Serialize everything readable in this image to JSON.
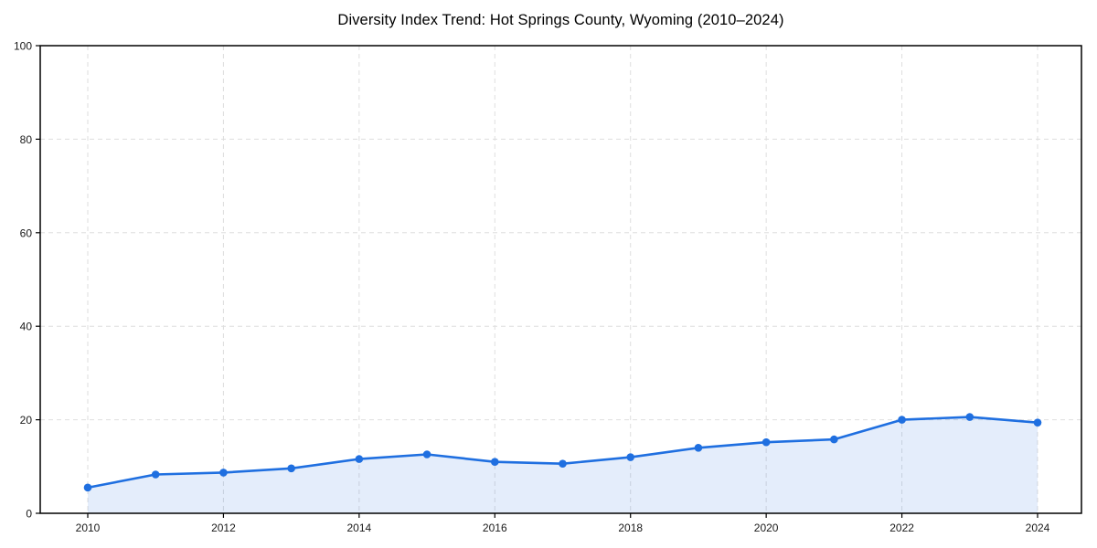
{
  "title": "Diversity Index Trend: Hot Springs County, Wyoming (2010–2024)",
  "chart_data": {
    "type": "area",
    "series_name": "Diversity Index",
    "x": [
      2010,
      2011,
      2012,
      2013,
      2014,
      2015,
      2016,
      2017,
      2018,
      2019,
      2020,
      2021,
      2022,
      2023,
      2024
    ],
    "values": [
      5.5,
      8.3,
      8.7,
      9.6,
      11.6,
      12.6,
      11.0,
      10.6,
      12.0,
      14.0,
      15.2,
      15.8,
      20.0,
      20.6,
      19.4
    ],
    "title": "Diversity Index Trend: Hot Springs County, Wyoming (2010–2024)",
    "xlabel": "",
    "ylabel": "",
    "ylim": [
      0,
      100
    ],
    "yticks": [
      0,
      20,
      40,
      60,
      80,
      100
    ],
    "xticks": [
      2010,
      2012,
      2014,
      2016,
      2018,
      2020,
      2022,
      2024
    ],
    "grid": true,
    "grid_style": "dashed",
    "legend": "none",
    "marker": "circle",
    "colors": {
      "line": "#1f6fe0",
      "fill_opacity": 0.12,
      "gridline": "#dedede",
      "axis_border": "#000000",
      "tick_label": "#1a1a1a",
      "background": "#ffffff"
    }
  }
}
